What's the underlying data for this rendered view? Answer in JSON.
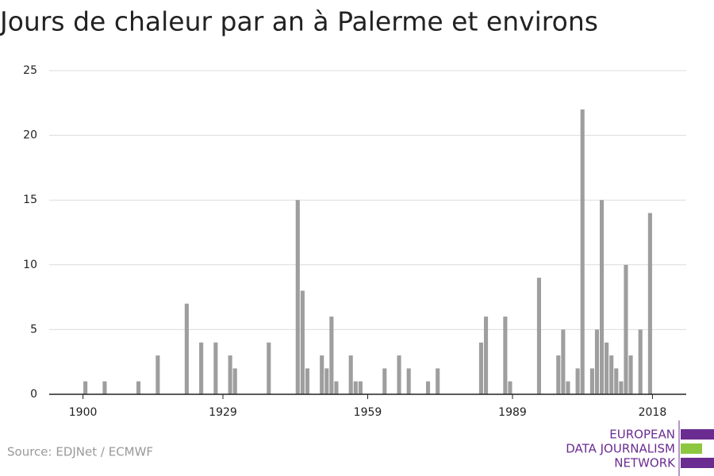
{
  "chart_data": {
    "type": "bar",
    "title": "Jours de chaleur par an à Palerme et environs",
    "x": [
      1900,
      1904,
      1911,
      1915,
      1921,
      1924,
      1927,
      1930,
      1931,
      1938,
      1944,
      1945,
      1946,
      1949,
      1950,
      1951,
      1952,
      1955,
      1956,
      1957,
      1962,
      1965,
      1967,
      1971,
      1973,
      1982,
      1983,
      1987,
      1988,
      1994,
      1998,
      1999,
      2000,
      2002,
      2003,
      2005,
      2006,
      2007,
      2008,
      2009,
      2010,
      2011,
      2012,
      2013,
      2015,
      2017
    ],
    "values": [
      1,
      1,
      1,
      3,
      7,
      4,
      4,
      3,
      2,
      4,
      15,
      8,
      2,
      3,
      2,
      6,
      1,
      3,
      1,
      1,
      2,
      3,
      2,
      1,
      2,
      4,
      6,
      6,
      1,
      9,
      3,
      5,
      1,
      2,
      22,
      2,
      5,
      15,
      4,
      3,
      2,
      1,
      10,
      3,
      5,
      14
    ],
    "color": "#9e9e9e",
    "xlim": [
      1893,
      2025
    ],
    "xticks": [
      1900,
      1929,
      1959,
      1989,
      2018
    ],
    "ylim": [
      0,
      25
    ],
    "yticks": [
      0,
      5,
      10,
      15,
      20,
      25
    ],
    "grid": true
  },
  "source": "Source: EDJNet / ECMWF",
  "logo": [
    "EUROPEAN",
    "DATA JOURNALISM",
    "NETWORK"
  ]
}
